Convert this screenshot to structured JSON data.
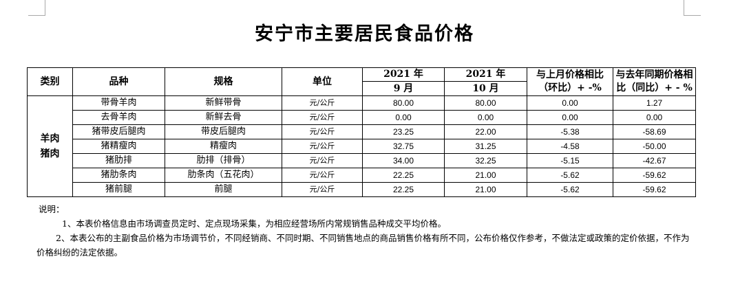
{
  "title": "安宁市主要居民食品价格",
  "headers": {
    "category": "类别",
    "variety": "品种",
    "spec": "规格",
    "unit": "单位",
    "col_a_year": "2021 年",
    "col_a_month": "9 月",
    "col_b_year": "2021 年",
    "col_b_month": "10 月",
    "mom_line1": "与上月价格相比",
    "mom_line2": "（环比）+ -%",
    "yoy_line1": "与去年同期价格相",
    "yoy_line2": "比（同比）+ - %"
  },
  "category": {
    "line1": "羊肉",
    "line2": "猪肉"
  },
  "rows": [
    {
      "variety": "带骨羊肉",
      "spec": "新鲜带骨",
      "unit": "元/公斤",
      "sep": "80.00",
      "oct": "80.00",
      "mom": "0.00",
      "yoy": "1.27"
    },
    {
      "variety": "去骨羊肉",
      "spec": "新鲜去骨",
      "unit": "元/公斤",
      "sep": "0.00",
      "oct": "0.00",
      "mom": "0.00",
      "yoy": "0.00"
    },
    {
      "variety": "猪带皮后腿肉",
      "spec": "带皮后腿肉",
      "unit": "元/公斤",
      "sep": "23.25",
      "oct": "22.00",
      "mom": "-5.38",
      "yoy": "-58.69"
    },
    {
      "variety": "猪精瘦肉",
      "spec": "精瘦肉",
      "unit": "元/公斤",
      "sep": "32.75",
      "oct": "31.25",
      "mom": "-4.58",
      "yoy": "-50.00"
    },
    {
      "variety": "猪肋排",
      "spec": "肋排（排骨）",
      "unit": "元/公斤",
      "sep": "34.00",
      "oct": "32.25",
      "mom": "-5.15",
      "yoy": "-42.67"
    },
    {
      "variety": "猪肋条肉",
      "spec": "肋条肉（五花肉）",
      "unit": "元/公斤",
      "sep": "22.25",
      "oct": "21.00",
      "mom": "-5.62",
      "yoy": "-59.62"
    },
    {
      "variety": "猪前腿",
      "spec": "前腿",
      "unit": "元/公斤",
      "sep": "22.25",
      "oct": "21.00",
      "mom": "-5.62",
      "yoy": "-59.62"
    }
  ],
  "notes": {
    "label": "说明：",
    "note1": "1、本表价格信息由市场调查员定时、定点现场采集，为相应经营场所内常规销售品种成交平均价格。",
    "note2": "2、本表公布的主副食品价格为市场调节价，不同经销商、不同时期、不同销售地点的商品销售价格有所不同，公布价格仅作参考，不做法定或政策的定价依据，不作为价格纠纷的法定依据。"
  }
}
